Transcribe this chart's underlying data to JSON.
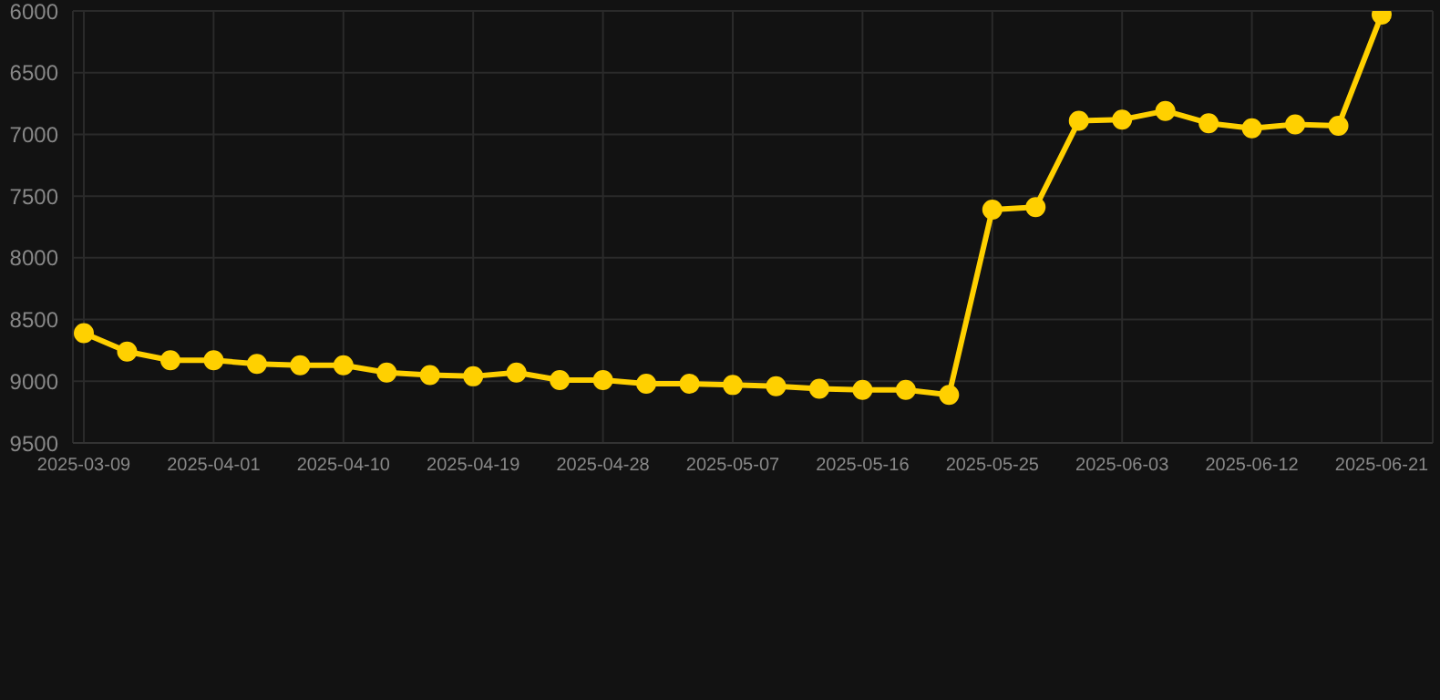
{
  "chart_data": {
    "type": "line",
    "categories": [
      "2025-03-09",
      null,
      null,
      "2025-04-01",
      null,
      null,
      "2025-04-10",
      null,
      null,
      "2025-04-19",
      null,
      null,
      "2025-04-28",
      null,
      null,
      "2025-05-07",
      null,
      null,
      "2025-05-16",
      null,
      null,
      "2025-05-25",
      null,
      null,
      "2025-06-03",
      null,
      null,
      "2025-06-12",
      null,
      null,
      "2025-06-21"
    ],
    "series": [
      {
        "color": "#ffd000",
        "values": [
          8610,
          8760,
          8830,
          8830,
          8860,
          8870,
          8870,
          8930,
          8950,
          8960,
          8930,
          8990,
          8990,
          9020,
          9020,
          9030,
          9040,
          9060,
          9070,
          9070,
          9110,
          7610,
          7590,
          6890,
          6880,
          6810,
          6910,
          6950,
          6920,
          6930,
          6030
        ]
      }
    ],
    "ylim": [
      9500,
      6000
    ],
    "yticks": [
      6000,
      6500,
      7000,
      7500,
      8000,
      8500,
      9000,
      9500
    ],
    "grid": true,
    "marker": "circle",
    "line_style": "solid",
    "legend": false
  }
}
